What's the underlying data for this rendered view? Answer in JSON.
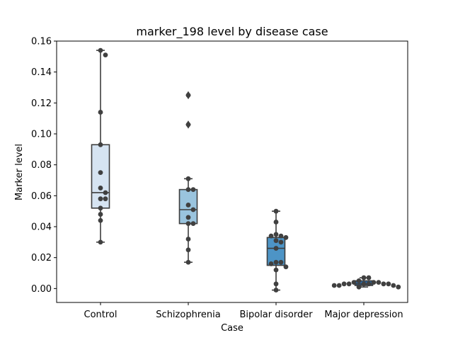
{
  "chart_data": {
    "type": "box",
    "title": "marker_198 level by disease case",
    "xlabel": "Case",
    "ylabel": "Marker level",
    "ylim": [
      -0.009,
      0.16
    ],
    "yticks": [
      "0.00",
      "0.02",
      "0.04",
      "0.06",
      "0.08",
      "0.10",
      "0.12",
      "0.14",
      "0.16"
    ],
    "categories": [
      "Control",
      "Schizophrenia",
      "Bipolar disorder",
      "Major depression"
    ],
    "colors": [
      "#d6e4f2",
      "#9ac4de",
      "#4d94c6",
      "#2b6aa8"
    ],
    "boxes": [
      {
        "q1": 0.052,
        "median": 0.062,
        "q3": 0.093,
        "whisker_low": 0.03,
        "whisker_high": 0.154,
        "outliers": []
      },
      {
        "q1": 0.042,
        "median": 0.051,
        "q3": 0.064,
        "whisker_low": 0.017,
        "whisker_high": 0.071,
        "outliers": [
          0.106,
          0.125
        ]
      },
      {
        "q1": 0.015,
        "median": 0.026,
        "q3": 0.033,
        "whisker_low": -0.001,
        "whisker_high": 0.05,
        "outliers": []
      },
      {
        "q1": 0.002,
        "median": 0.003,
        "q3": 0.005,
        "whisker_low": 0.001,
        "whisker_high": 0.007,
        "outliers": []
      }
    ],
    "points": [
      [
        0.154,
        0.151,
        0.114,
        0.093,
        0.075,
        0.065,
        0.062,
        0.058,
        0.058,
        0.052,
        0.048,
        0.044,
        0.03
      ],
      [
        0.125,
        0.106,
        0.071,
        0.064,
        0.064,
        0.054,
        0.051,
        0.046,
        0.042,
        0.042,
        0.032,
        0.025,
        0.017
      ],
      [
        0.05,
        0.043,
        0.035,
        0.034,
        0.034,
        0.033,
        0.031,
        0.03,
        0.026,
        0.017,
        0.017,
        0.016,
        0.014,
        0.012,
        0.003,
        -0.001
      ],
      [
        0.007,
        0.007,
        0.005,
        0.004,
        0.004,
        0.004,
        0.003,
        0.003,
        0.003,
        0.003,
        0.003,
        0.003,
        0.002,
        0.002,
        0.002,
        0.001,
        0.001
      ]
    ]
  }
}
